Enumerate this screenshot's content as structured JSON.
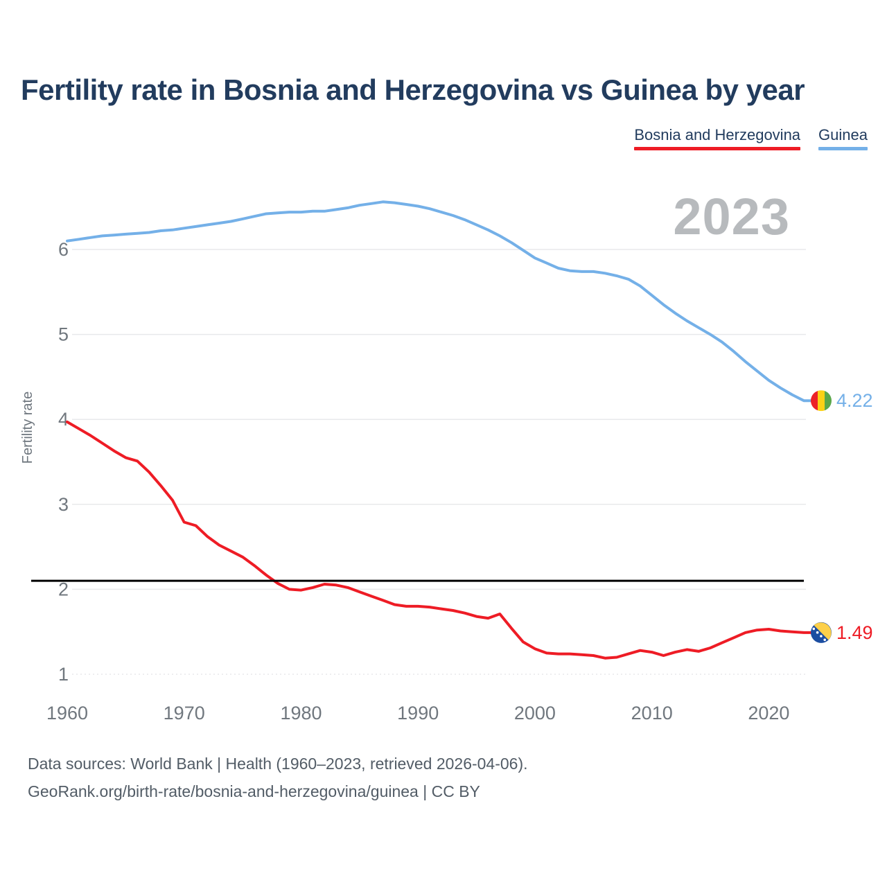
{
  "header": {
    "title": "Fertility rate in Bosnia and Herzegovina vs Guinea by year"
  },
  "legend": {
    "items": [
      {
        "label": "Bosnia and Herzegovina",
        "color": "#ee1c25"
      },
      {
        "label": "Guinea",
        "color": "#74b0e8"
      }
    ]
  },
  "watermark": "2023",
  "footer": {
    "line1": "Data sources: World Bank | Health (1960–2023, retrieved 2026-04-06).",
    "line2": "GeoRank.org/birth-rate/bosnia-and-herzegovina/guinea | CC BY"
  },
  "flags": {
    "guinea": {
      "stripes": [
        "#ec2227",
        "#fbd116",
        "#5aa74a"
      ]
    },
    "bosnia": {
      "bg": "#1b4da1",
      "triangle": "#fdd04a",
      "stars": "#ffffff"
    }
  },
  "chart_data": {
    "type": "line",
    "title": "Fertility rate in Bosnia and Herzegovina vs Guinea by year",
    "xlabel": "",
    "ylabel": "Fertility rate",
    "grid": true,
    "legend_position": "top-right",
    "xlim": [
      1960,
      2023
    ],
    "ylim": [
      0.7,
      6.8
    ],
    "xticks": [
      1960,
      1970,
      1980,
      1990,
      2000,
      2010,
      2020
    ],
    "yticks": [
      1,
      2,
      3,
      4,
      5,
      6
    ],
    "reference_line": {
      "value": 2.1,
      "color": "#000000"
    },
    "x": [
      1960,
      1961,
      1962,
      1963,
      1964,
      1965,
      1966,
      1967,
      1968,
      1969,
      1970,
      1971,
      1972,
      1973,
      1974,
      1975,
      1976,
      1977,
      1978,
      1979,
      1980,
      1981,
      1982,
      1983,
      1984,
      1985,
      1986,
      1987,
      1988,
      1989,
      1990,
      1991,
      1992,
      1993,
      1994,
      1995,
      1996,
      1997,
      1998,
      1999,
      2000,
      2001,
      2002,
      2003,
      2004,
      2005,
      2006,
      2007,
      2008,
      2009,
      2010,
      2011,
      2012,
      2013,
      2014,
      2015,
      2016,
      2017,
      2018,
      2019,
      2020,
      2021,
      2022,
      2023
    ],
    "series": [
      {
        "name": "Bosnia and Herzegovina",
        "color": "#ee1c25",
        "flag": "bosnia",
        "end_label": "1.49",
        "values": [
          3.97,
          3.89,
          3.81,
          3.72,
          3.63,
          3.55,
          3.51,
          3.38,
          3.22,
          3.05,
          2.79,
          2.75,
          2.62,
          2.52,
          2.45,
          2.38,
          2.28,
          2.17,
          2.07,
          2.0,
          1.99,
          2.02,
          2.06,
          2.05,
          2.02,
          1.97,
          1.92,
          1.87,
          1.82,
          1.8,
          1.8,
          1.79,
          1.77,
          1.75,
          1.72,
          1.68,
          1.66,
          1.71,
          1.54,
          1.38,
          1.3,
          1.25,
          1.24,
          1.24,
          1.23,
          1.22,
          1.19,
          1.2,
          1.24,
          1.28,
          1.26,
          1.22,
          1.26,
          1.29,
          1.27,
          1.31,
          1.37,
          1.43,
          1.49,
          1.52,
          1.53,
          1.51,
          1.5,
          1.49
        ]
      },
      {
        "name": "Guinea",
        "color": "#74b0e8",
        "flag": "guinea",
        "end_label": "4.22",
        "values": [
          6.1,
          6.12,
          6.14,
          6.16,
          6.17,
          6.18,
          6.19,
          6.2,
          6.22,
          6.23,
          6.25,
          6.27,
          6.29,
          6.31,
          6.33,
          6.36,
          6.39,
          6.42,
          6.43,
          6.44,
          6.44,
          6.45,
          6.45,
          6.47,
          6.49,
          6.52,
          6.54,
          6.56,
          6.55,
          6.53,
          6.51,
          6.48,
          6.44,
          6.4,
          6.35,
          6.29,
          6.23,
          6.16,
          6.08,
          5.99,
          5.9,
          5.84,
          5.78,
          5.75,
          5.74,
          5.74,
          5.72,
          5.69,
          5.65,
          5.57,
          5.46,
          5.35,
          5.25,
          5.16,
          5.08,
          5.0,
          4.91,
          4.8,
          4.68,
          4.57,
          4.46,
          4.37,
          4.29,
          4.22
        ]
      }
    ]
  }
}
